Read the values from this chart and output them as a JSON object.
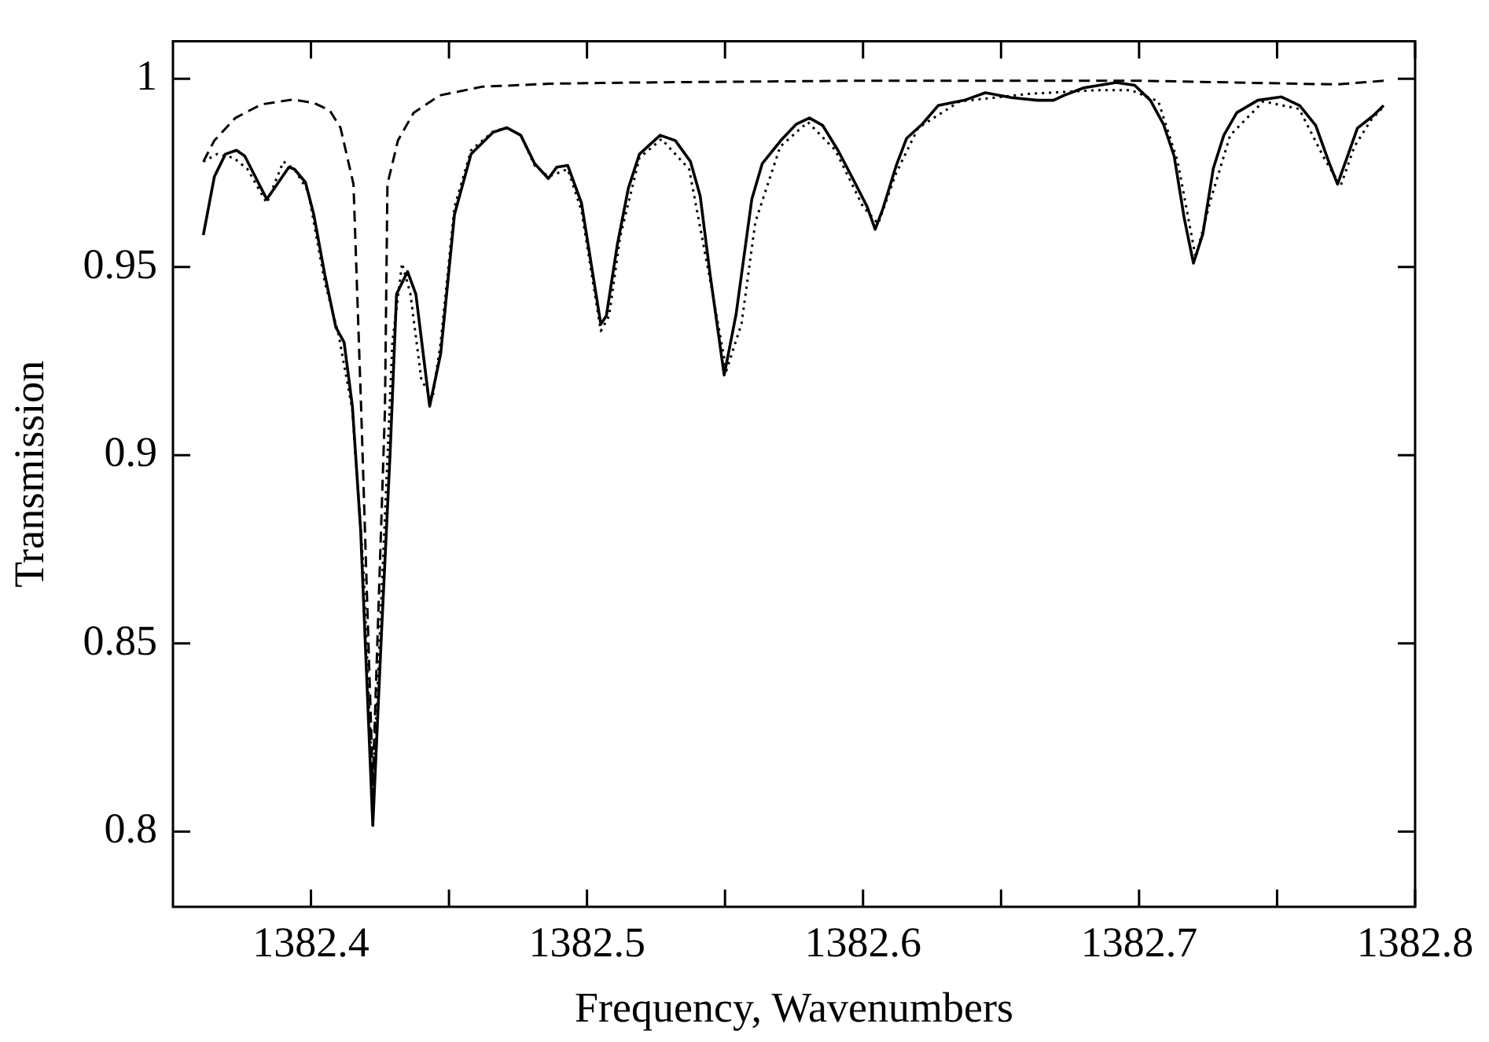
{
  "chart_data": {
    "type": "line",
    "xlabel": "Frequency, Wavenumbers",
    "ylabel": "Transmission",
    "xlim": [
      1382.35,
      1382.8
    ],
    "ylim": [
      0.78,
      1.01
    ],
    "xticks": [
      1382.4,
      {
        "value": 1382.45,
        "label": null
      },
      1382.5,
      {
        "value": 1382.55,
        "label": null
      },
      1382.6,
      {
        "value": 1382.65,
        "label": null
      },
      1382.7,
      {
        "value": 1382.75,
        "label": null
      },
      1382.8
    ],
    "yticks": [
      0.8,
      0.85,
      0.9,
      0.95,
      1
    ],
    "marker": "none",
    "series": [
      {
        "color": "#000000",
        "line_style": "solid",
        "x": [
          1382.361,
          1382.365,
          1382.369,
          1382.373,
          1382.376,
          1382.384,
          1382.392,
          1382.394,
          1382.398,
          1382.401,
          1382.405,
          1382.409,
          1382.412,
          1382.415,
          1382.418,
          1382.4224,
          1382.4255,
          1382.4287,
          1382.431,
          1382.435,
          1382.438,
          1382.443,
          1382.447,
          1382.452,
          1382.458,
          1382.466,
          1382.471,
          1382.476,
          1382.481,
          1382.486,
          1382.489,
          1382.493,
          1382.498,
          1382.505,
          1382.507,
          1382.511,
          1382.515,
          1382.519,
          1382.5265,
          1382.532,
          1382.5375,
          1382.541,
          1382.5446,
          1382.5497,
          1382.554,
          1382.5597,
          1382.5635,
          1382.5702,
          1382.5759,
          1382.5806,
          1382.5854,
          1382.591,
          1382.5967,
          1382.6015,
          1382.6044,
          1382.6072,
          1382.612,
          1382.6158,
          1382.6215,
          1382.6272,
          1382.6367,
          1382.6443,
          1382.6538,
          1382.6632,
          1382.669,
          1382.6728,
          1382.68,
          1382.6917,
          1382.6984,
          1382.7041,
          1382.7088,
          1382.7127,
          1382.7164,
          1382.7197,
          1382.7231,
          1382.7269,
          1382.7307,
          1382.7354,
          1382.743,
          1382.7516,
          1382.7582,
          1382.764,
          1382.7687,
          1382.7719,
          1382.7753,
          1382.7791,
          1382.7848,
          1382.7886
        ],
        "values": [
          0.9585,
          0.974,
          0.98,
          0.981,
          0.9795,
          0.968,
          0.9765,
          0.976,
          0.9725,
          0.964,
          0.948,
          0.934,
          0.93,
          0.913,
          0.88,
          0.8016,
          0.852,
          0.901,
          0.9428,
          0.9488,
          0.9428,
          0.913,
          0.927,
          0.964,
          0.98,
          0.9858,
          0.987,
          0.985,
          0.9775,
          0.9735,
          0.9765,
          0.977,
          0.967,
          0.9348,
          0.937,
          0.956,
          0.971,
          0.98,
          0.985,
          0.9836,
          0.978,
          0.9689,
          0.948,
          0.9213,
          0.9374,
          0.968,
          0.9775,
          0.9836,
          0.988,
          0.9896,
          0.9876,
          0.9809,
          0.9729,
          0.966,
          0.96,
          0.9655,
          0.9769,
          0.9842,
          0.988,
          0.9929,
          0.9943,
          0.9963,
          0.995,
          0.9943,
          0.9943,
          0.9956,
          0.9976,
          0.999,
          0.9983,
          0.9943,
          0.988,
          0.9795,
          0.9628,
          0.951,
          0.9588,
          0.9762,
          0.985,
          0.991,
          0.9943,
          0.9952,
          0.9929,
          0.9876,
          0.978,
          0.972,
          0.979,
          0.9869,
          0.9902,
          0.9929
        ]
      },
      {
        "color": "#000000",
        "line_style": "dotted",
        "x": [
          1382.361,
          1382.366,
          1382.372,
          1382.377,
          1382.384,
          1382.39,
          1382.394,
          1382.399,
          1382.405,
          1382.41,
          1382.415,
          1382.419,
          1382.4224,
          1382.426,
          1382.4295,
          1382.433,
          1382.436,
          1382.44,
          1382.444,
          1382.447,
          1382.452,
          1382.458,
          1382.466,
          1382.471,
          1382.476,
          1382.481,
          1382.486,
          1382.493,
          1382.498,
          1382.505,
          1382.508,
          1382.512,
          1382.519,
          1382.527,
          1382.537,
          1382.545,
          1382.5505,
          1382.556,
          1382.561,
          1382.57,
          1382.58,
          1382.59,
          1382.6,
          1382.6055,
          1382.612,
          1382.62,
          1382.635,
          1382.66,
          1382.685,
          1382.697,
          1382.707,
          1382.714,
          1382.7205,
          1382.726,
          1382.733,
          1382.745,
          1382.758,
          1382.767,
          1382.773,
          1382.778,
          1382.784,
          1382.789
        ],
        "values": [
          0.978,
          0.98,
          0.979,
          0.976,
          0.967,
          0.978,
          0.976,
          0.97,
          0.946,
          0.932,
          0.912,
          0.87,
          0.81,
          0.87,
          0.93,
          0.951,
          0.943,
          0.92,
          0.915,
          0.93,
          0.966,
          0.981,
          0.986,
          0.987,
          0.985,
          0.977,
          0.974,
          0.976,
          0.965,
          0.933,
          0.937,
          0.958,
          0.979,
          0.984,
          0.976,
          0.945,
          0.9225,
          0.935,
          0.962,
          0.982,
          0.9885,
          0.981,
          0.966,
          0.9615,
          0.975,
          0.987,
          0.994,
          0.996,
          0.997,
          0.997,
          0.994,
          0.978,
          0.9525,
          0.968,
          0.985,
          0.994,
          0.992,
          0.979,
          0.9715,
          0.982,
          0.989,
          0.993
        ]
      },
      {
        "color": "#000000",
        "line_style": "dashed",
        "x": [
          1382.361,
          1382.365,
          1382.3726,
          1382.382,
          1382.3935,
          1382.401,
          1382.4068,
          1382.4107,
          1382.4154,
          1382.4182,
          1382.4224,
          1382.4268,
          1382.4277,
          1382.4315,
          1382.4372,
          1382.4467,
          1382.462,
          1382.4866,
          1382.515,
          1382.6,
          1382.7,
          1382.7715,
          1382.789
        ],
        "values": [
          0.978,
          0.9836,
          0.9896,
          0.9932,
          0.9945,
          0.9936,
          0.9916,
          0.987,
          0.972,
          0.912,
          0.813,
          0.912,
          0.972,
          0.9836,
          0.991,
          0.9956,
          0.9979,
          0.9987,
          0.999,
          0.9995,
          0.9995,
          0.9985,
          0.9995
        ]
      }
    ]
  }
}
